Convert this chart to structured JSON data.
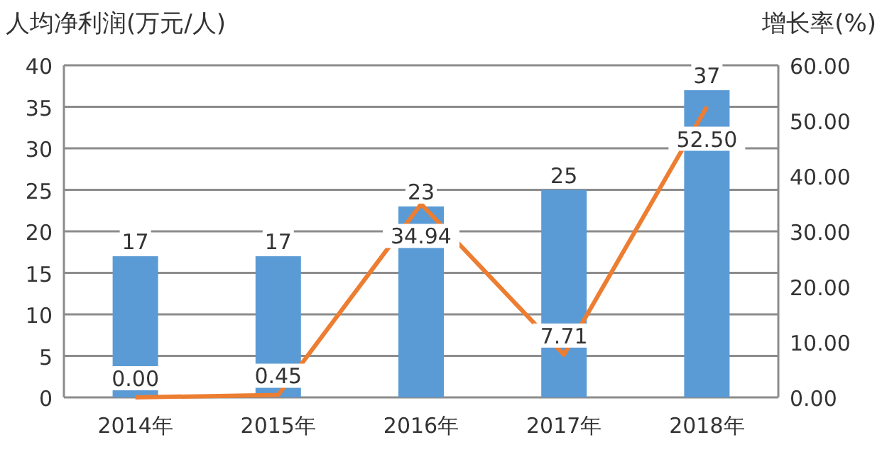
{
  "chart_data": {
    "type": "bar",
    "categories": [
      "2014年",
      "2015年",
      "2016年",
      "2017年",
      "2018年"
    ],
    "ylabel": "人均净利润(万元/人)",
    "y2label": "增长率(%)",
    "series": [
      {
        "color": "#5b9bd5",
        "values": [
          17,
          17,
          23,
          25,
          37
        ],
        "value_labels": [
          "17",
          "17",
          "23",
          "25",
          "37"
        ]
      },
      {
        "type": "line",
        "axis": "y2",
        "color": "#ed7d31",
        "values": [
          0.0,
          0.45,
          34.94,
          7.71,
          52.5
        ],
        "value_labels": [
          "0.00",
          "0.45",
          "34.94",
          "7.71",
          "52.50"
        ]
      }
    ],
    "ylim": [
      0,
      40
    ],
    "yticks": [
      0,
      5,
      10,
      15,
      20,
      25,
      30,
      35,
      40
    ],
    "y2lim": [
      0,
      60
    ],
    "y2ticks": [
      {
        "value": 0,
        "label": "0.00"
      },
      {
        "value": 10,
        "label": "10.00"
      },
      {
        "value": 20,
        "label": "20.00"
      },
      {
        "value": 30,
        "label": "30.00"
      },
      {
        "value": 40,
        "label": "40.00"
      },
      {
        "value": 50,
        "label": "50.00"
      },
      {
        "value": 60,
        "label": "60.00"
      }
    ],
    "grid": "y"
  }
}
